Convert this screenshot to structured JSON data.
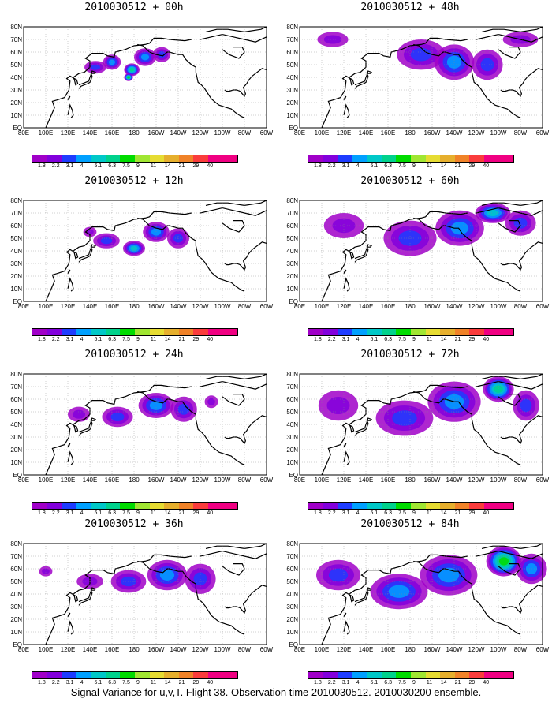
{
  "caption": "Signal Variance for u,v,T. Flight 38. Observation time 2010030512. 2010030200 ensemble.",
  "colorbar": {
    "labels": [
      "1.8",
      "2.2",
      "3.1",
      "4",
      "5.1",
      "6.3",
      "7.5",
      "9",
      "11",
      "14",
      "21",
      "29",
      "40"
    ],
    "colors": [
      "#a000c8",
      "#8200dc",
      "#1e3cff",
      "#00a0ff",
      "#00c8c8",
      "#00d28c",
      "#00dc00",
      "#a0e632",
      "#e6dc32",
      "#e6af2d",
      "#f08228",
      "#fa3c3c",
      "#f00082"
    ]
  },
  "map_axes": {
    "x_ticks": [
      "80E",
      "100E",
      "120E",
      "140E",
      "160E",
      "180",
      "160W",
      "140W",
      "120W",
      "100W",
      "80W",
      "60W"
    ],
    "y_ticks": [
      "EQ",
      "10N",
      "20N",
      "30N",
      "40N",
      "50N",
      "60N",
      "70N",
      "80N"
    ],
    "lon_range": [
      80,
      300
    ],
    "lat_range": [
      0,
      80
    ]
  },
  "chart_data": [
    {
      "type": "heatmap",
      "title": "2010030512 + 00h",
      "forecast_hour": 0,
      "blobs": [
        [
          145,
          48,
          10,
          5,
          2
        ],
        [
          160,
          52,
          8,
          6,
          3
        ],
        [
          178,
          46,
          7,
          5,
          5
        ],
        [
          190,
          56,
          10,
          7,
          3
        ],
        [
          205,
          58,
          8,
          6,
          2
        ],
        [
          175,
          40,
          4,
          3,
          6
        ]
      ]
    },
    {
      "type": "heatmap",
      "title": "2010030512 + 12h",
      "forecast_hour": 12,
      "blobs": [
        [
          155,
          48,
          12,
          6,
          2
        ],
        [
          180,
          42,
          10,
          6,
          4
        ],
        [
          200,
          55,
          12,
          8,
          3
        ],
        [
          220,
          50,
          10,
          8,
          2
        ],
        [
          140,
          55,
          6,
          4,
          1
        ]
      ]
    },
    {
      "type": "heatmap",
      "title": "2010030512 + 24h",
      "forecast_hour": 24,
      "blobs": [
        [
          130,
          48,
          10,
          6,
          1
        ],
        [
          165,
          46,
          14,
          8,
          2
        ],
        [
          200,
          55,
          16,
          10,
          3
        ],
        [
          225,
          52,
          12,
          10,
          2
        ],
        [
          250,
          58,
          6,
          5,
          1
        ]
      ]
    },
    {
      "type": "heatmap",
      "title": "2010030512 + 36h",
      "forecast_hour": 36,
      "blobs": [
        [
          140,
          50,
          12,
          6,
          1
        ],
        [
          175,
          50,
          16,
          9,
          2
        ],
        [
          210,
          55,
          18,
          12,
          3
        ],
        [
          240,
          52,
          14,
          12,
          2
        ],
        [
          100,
          58,
          6,
          4,
          1
        ]
      ]
    },
    {
      "type": "heatmap",
      "title": "2010030512 + 48h",
      "forecast_hour": 48,
      "blobs": [
        [
          110,
          70,
          14,
          6,
          1
        ],
        [
          190,
          58,
          22,
          12,
          2
        ],
        [
          220,
          52,
          18,
          14,
          3
        ],
        [
          250,
          50,
          14,
          12,
          2
        ],
        [
          280,
          70,
          16,
          6,
          1
        ]
      ]
    },
    {
      "type": "heatmap",
      "title": "2010030512 + 60h",
      "forecast_hour": 60,
      "blobs": [
        [
          120,
          60,
          18,
          10,
          1
        ],
        [
          180,
          50,
          24,
          14,
          2
        ],
        [
          225,
          58,
          22,
          14,
          3
        ],
        [
          255,
          70,
          16,
          8,
          4
        ],
        [
          280,
          62,
          14,
          10,
          2
        ]
      ]
    },
    {
      "type": "heatmap",
      "title": "2010030512 + 72h",
      "forecast_hour": 72,
      "blobs": [
        [
          115,
          55,
          18,
          12,
          1
        ],
        [
          175,
          45,
          26,
          14,
          2
        ],
        [
          220,
          58,
          24,
          16,
          3
        ],
        [
          260,
          68,
          14,
          10,
          5
        ],
        [
          285,
          55,
          12,
          12,
          2
        ]
      ]
    },
    {
      "type": "heatmap",
      "title": "2010030512 + 84h",
      "forecast_hour": 84,
      "blobs": [
        [
          115,
          55,
          20,
          12,
          2
        ],
        [
          170,
          42,
          26,
          14,
          3
        ],
        [
          215,
          55,
          26,
          16,
          3
        ],
        [
          265,
          66,
          16,
          12,
          6
        ],
        [
          290,
          60,
          14,
          12,
          3
        ]
      ]
    }
  ]
}
